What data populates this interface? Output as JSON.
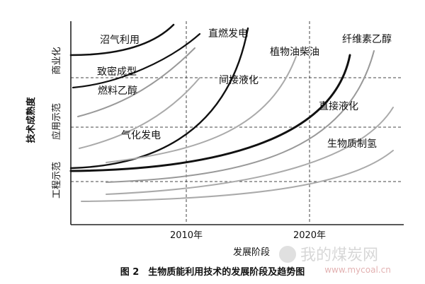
{
  "diagram": {
    "y_axis_title": "技术成熟度",
    "y_levels": [
      "工程示范",
      "应用示范",
      "商业化"
    ],
    "x_axis_title": "发展阶段",
    "x_ticks": [
      "2010年",
      "2020年"
    ],
    "curves": [
      {
        "label": "沼气利用"
      },
      {
        "label": "致密成型"
      },
      {
        "label": "燃料乙醇"
      },
      {
        "label": "气化发电"
      },
      {
        "label": "直燃发电"
      },
      {
        "label": "植物油柴油"
      },
      {
        "label": "间接液化"
      },
      {
        "label": "纤维素乙醇"
      },
      {
        "label": "直接液化"
      },
      {
        "label": "生物质制氢"
      }
    ]
  },
  "caption": "图 2　生物质能利用技术的发展阶段及趋势图",
  "watermark": {
    "text": "我的煤炭网",
    "url": "www.mycoal.cn"
  }
}
